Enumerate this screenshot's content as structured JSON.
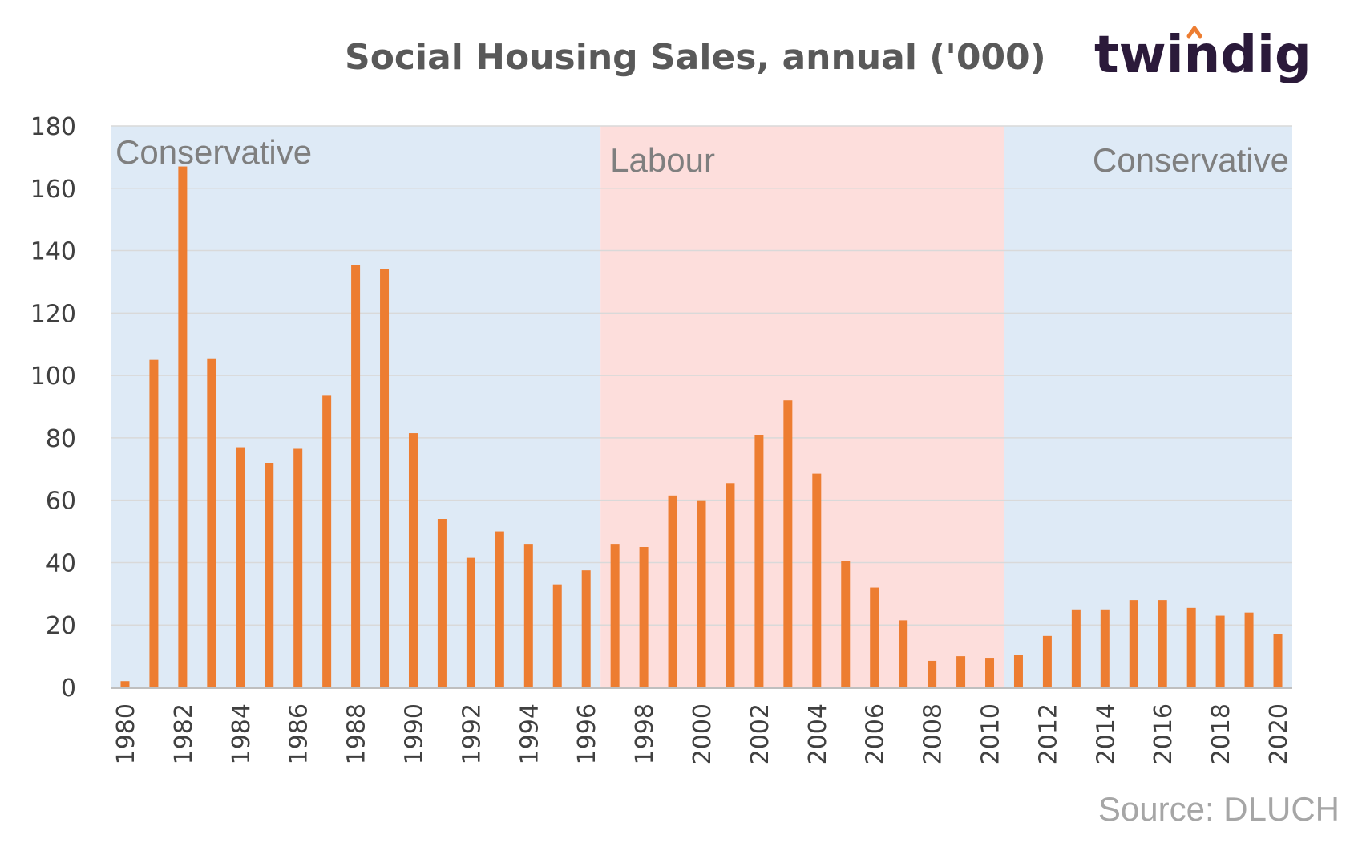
{
  "brand": {
    "name": "twindig"
  },
  "source": "Source: DLUCH",
  "colors": {
    "bar": "#ED7D31",
    "conservative": "#DEEAF6",
    "labour": "#FDDEDC",
    "grid": "#D9D9D9",
    "axis": "#BFBFBF",
    "brand_accent": "#ED7D31"
  },
  "chart_data": {
    "type": "bar",
    "title": "Social Housing Sales, annual  ('000)",
    "xlabel": "",
    "ylabel": "",
    "ylim": [
      0,
      180
    ],
    "yticks": [
      0,
      20,
      40,
      60,
      80,
      100,
      120,
      140,
      160,
      180
    ],
    "grid": true,
    "categories": [
      "1980",
      "1981",
      "1982",
      "1983",
      "1984",
      "1985",
      "1986",
      "1987",
      "1988",
      "1989",
      "1990",
      "1991",
      "1992",
      "1993",
      "1994",
      "1995",
      "1996",
      "1997",
      "1998",
      "1999",
      "2000",
      "2001",
      "2002",
      "2003",
      "2004",
      "2005",
      "2006",
      "2007",
      "2008",
      "2009",
      "2010",
      "2011",
      "2012",
      "2013",
      "2014",
      "2015",
      "2016",
      "2017",
      "2018",
      "2019",
      "2020"
    ],
    "tick_labels": [
      "1980",
      "1982",
      "1984",
      "1986",
      "1988",
      "1990",
      "1992",
      "1994",
      "1996",
      "1998",
      "2000",
      "2002",
      "2004",
      "2006",
      "2008",
      "2010",
      "2012",
      "2014",
      "2016",
      "2018",
      "2020"
    ],
    "values": [
      2,
      105,
      167,
      105.5,
      77,
      72,
      76.5,
      93.5,
      135.5,
      134,
      81.5,
      54,
      41.5,
      50,
      46,
      33,
      37.5,
      46,
      45,
      61.5,
      60,
      65.5,
      81,
      92,
      68.5,
      40.5,
      32,
      21.5,
      8.5,
      10,
      9.5,
      10.5,
      16.5,
      25,
      25,
      28,
      28,
      25.5,
      23,
      24,
      17
    ],
    "periods": [
      {
        "label": "Conservative",
        "start": "1980",
        "end": "1996",
        "color": "#DEEAF6"
      },
      {
        "label": "Labour",
        "start": "1997",
        "end": "2010",
        "color": "#FDDEDC"
      },
      {
        "label": "Conservative",
        "start": "2011",
        "end": "2020",
        "color": "#DEEAF6"
      }
    ]
  }
}
